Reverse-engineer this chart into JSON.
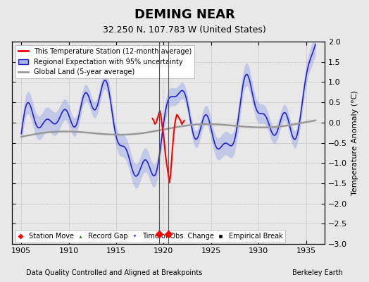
{
  "title": "DEMING NEAR",
  "subtitle": "32.250 N, 107.783 W (United States)",
  "xlabel_left": "Data Quality Controlled and Aligned at Breakpoints",
  "xlabel_right": "Berkeley Earth",
  "ylabel": "Temperature Anomaly (°C)",
  "xlim": [
    1904,
    1937
  ],
  "ylim": [
    -3.0,
    2.0
  ],
  "yticks": [
    -3,
    -2.5,
    -2,
    -1.5,
    -1,
    -0.5,
    0,
    0.5,
    1,
    1.5,
    2
  ],
  "xticks": [
    1905,
    1910,
    1915,
    1920,
    1925,
    1930,
    1935
  ],
  "bg_color": "#e8e8e8",
  "plot_bg_color": "#e8e8e8",
  "station_move_years": [
    1919.5,
    1920.5
  ],
  "time_of_obs_years": [
    1919.5,
    1920.5
  ],
  "red_line_start": 1919,
  "red_line_end": 1922,
  "vline_years": [
    1919.5,
    1920.5
  ]
}
